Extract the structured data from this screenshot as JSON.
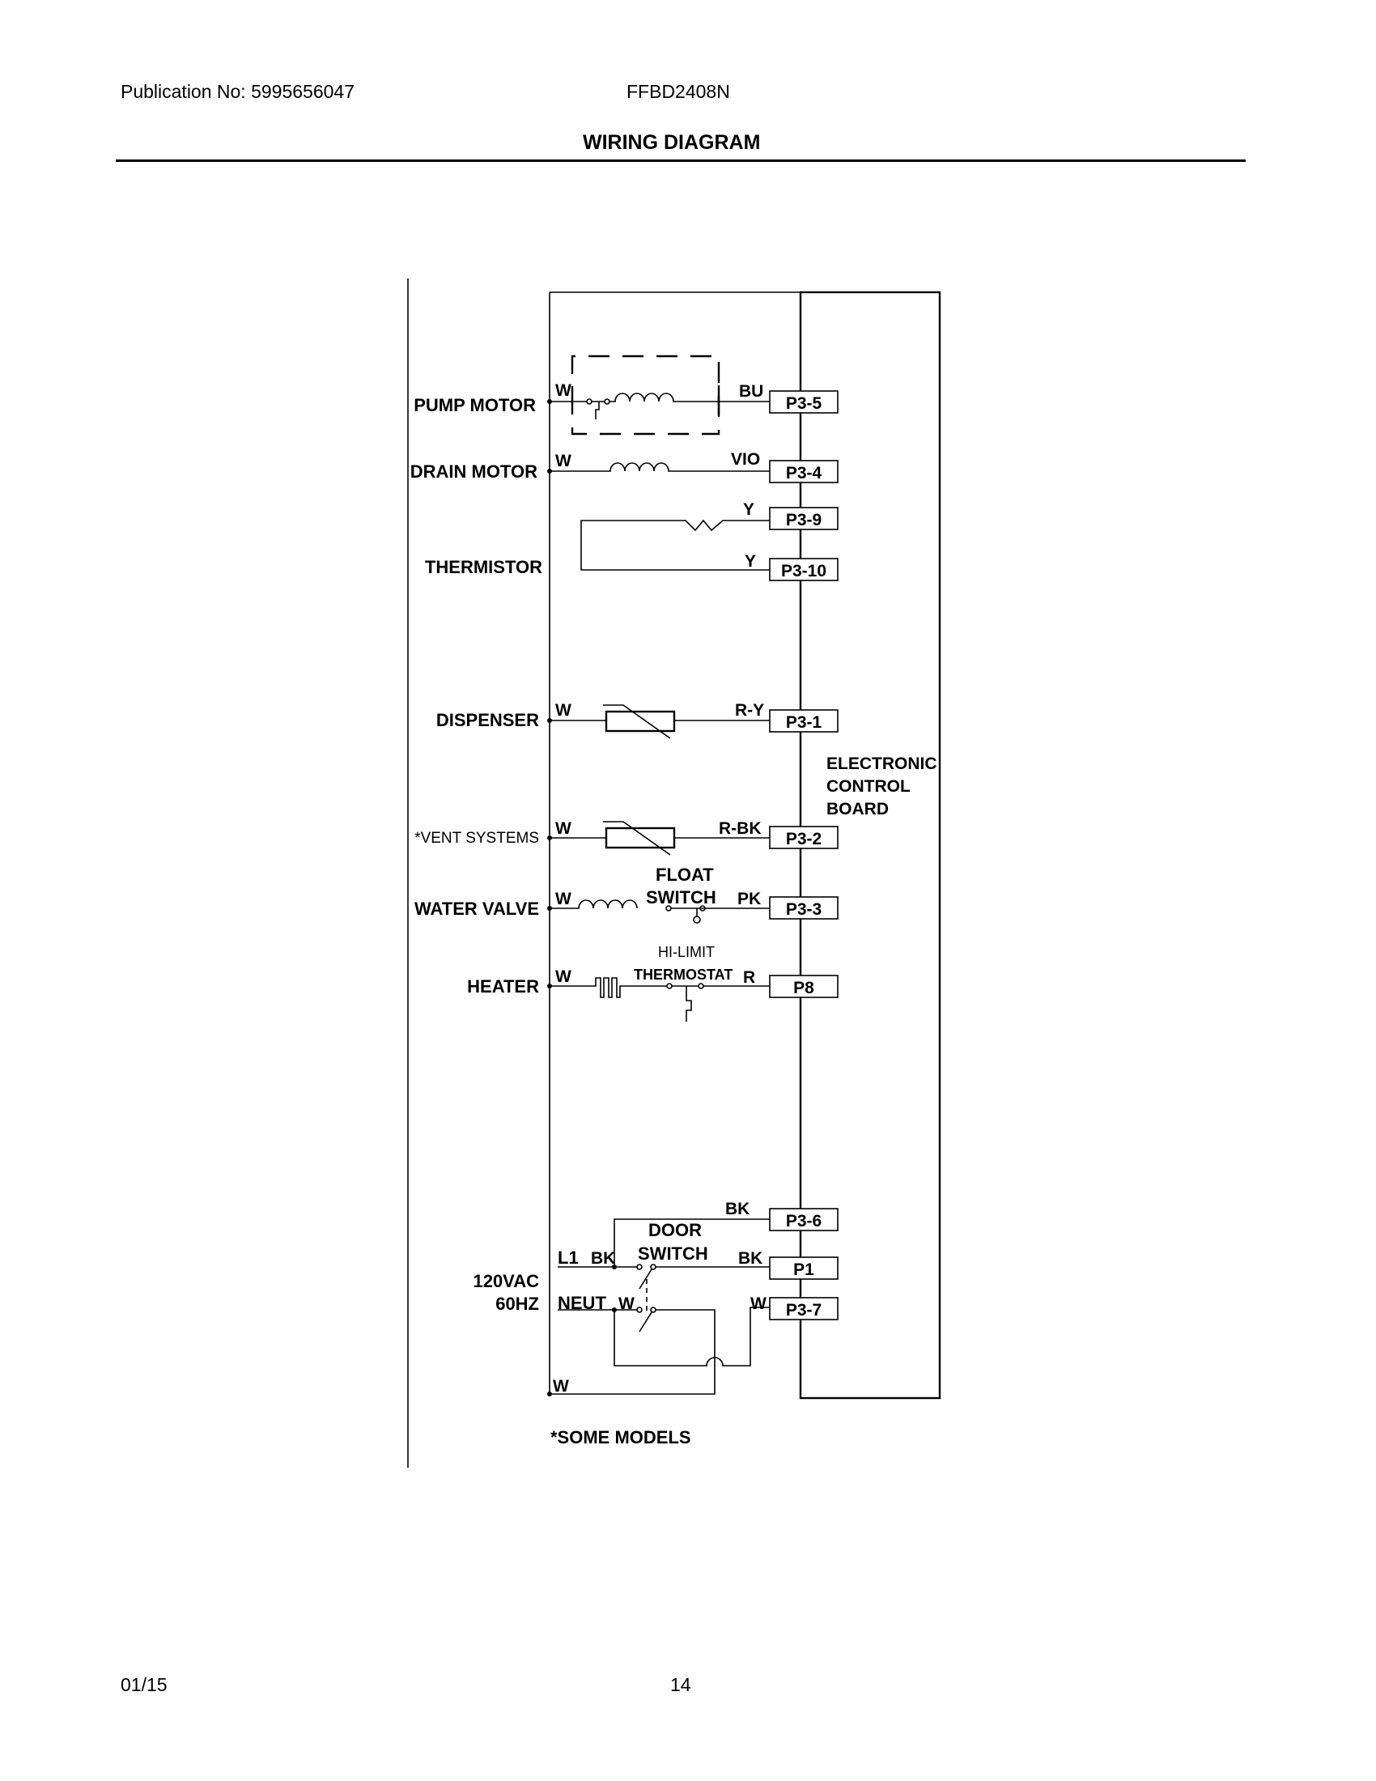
{
  "header": {
    "publication": "Publication No: 5995656047",
    "model": "FFBD2408N",
    "title": "WIRING DIAGRAM"
  },
  "footer": {
    "date": "01/15",
    "page": "14"
  },
  "components": {
    "pump_motor": "PUMP MOTOR",
    "drain_motor": "DRAIN MOTOR",
    "thermistor": "THERMISTOR",
    "dispenser": "DISPENSER",
    "vent_systems": "*VENT SYSTEMS",
    "water_valve": "WATER VALVE",
    "heater": "HEATER",
    "float_switch_1": "FLOAT",
    "float_switch_2": "SWITCH",
    "hi_limit_1": "HI-LIMIT",
    "hi_limit_2": "THERMOSTAT",
    "door_switch_1": "DOOR",
    "door_switch_2": "SWITCH",
    "power_1": "120VAC",
    "power_2": "60HZ",
    "l1": "L1",
    "neut": "NEUT",
    "board_1": "ELECTRONIC",
    "board_2": "CONTROL",
    "board_3": "BOARD",
    "note": "*SOME MODELS"
  },
  "wire_colors": {
    "pump_left": "W",
    "pump_right": "BU",
    "drain_left": "W",
    "drain_right": "VIO",
    "therm_top": "Y",
    "therm_bottom": "Y",
    "disp_left": "W",
    "disp_right": "R-Y",
    "vent_left": "W",
    "vent_right": "R-BK",
    "valve_left": "W",
    "valve_right": "PK",
    "heater_left": "W",
    "heater_right": "R",
    "p36": "BK",
    "l1_bk": "BK",
    "p1": "BK",
    "neut_w": "W",
    "p37": "W",
    "bottom_w": "W"
  },
  "pins": {
    "p3_5": "P3-5",
    "p3_4": "P3-4",
    "p3_9": "P3-9",
    "p3_10": "P3-10",
    "p3_1": "P3-1",
    "p3_2": "P3-2",
    "p3_3": "P3-3",
    "p8": "P8",
    "p3_6": "P3-6",
    "p1": "P1",
    "p3_7": "P3-7"
  }
}
